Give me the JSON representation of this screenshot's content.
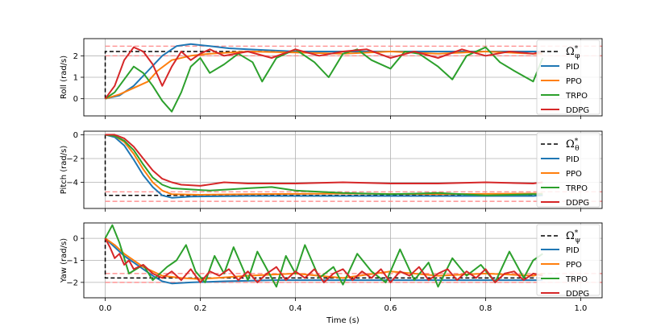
{
  "chart_data": [
    {
      "type": "line",
      "ylabel": "Roll (rad/s)",
      "xlim": [
        -0.045,
        1.045
      ],
      "ylim": [
        -0.8,
        2.8
      ],
      "yticks": [
        0,
        1,
        2
      ],
      "target": 2.2,
      "band": [
        2.0,
        2.45
      ],
      "legend_title": "Ω*ϕ",
      "series": [
        {
          "name": "PID",
          "color": "#1f77b4",
          "x": [
            0,
            0.03,
            0.06,
            0.09,
            0.12,
            0.15,
            0.18,
            0.22,
            0.26,
            0.3,
            0.4,
            0.5,
            0.6,
            0.7,
            0.8,
            0.9,
            0.92
          ],
          "y": [
            0,
            0.15,
            0.6,
            1.3,
            2.0,
            2.45,
            2.55,
            2.45,
            2.35,
            2.3,
            2.2,
            2.2,
            2.2,
            2.2,
            2.2,
            2.2,
            2.2
          ]
        },
        {
          "name": "PPO",
          "color": "#ff7f0e",
          "x": [
            0,
            0.03,
            0.06,
            0.09,
            0.11,
            0.14,
            0.18,
            0.22,
            0.3,
            0.4,
            0.5,
            0.6,
            0.7,
            0.8,
            0.9,
            0.92
          ],
          "y": [
            0,
            0.2,
            0.5,
            0.8,
            1.3,
            1.8,
            2.0,
            2.1,
            2.2,
            2.15,
            2.1,
            2.2,
            2.1,
            2.2,
            2.1,
            2.1
          ]
        },
        {
          "name": "TRPO",
          "color": "#2ca02c",
          "x": [
            0,
            0.02,
            0.04,
            0.06,
            0.08,
            0.1,
            0.12,
            0.14,
            0.16,
            0.18,
            0.2,
            0.22,
            0.25,
            0.28,
            0.31,
            0.33,
            0.36,
            0.4,
            0.44,
            0.47,
            0.5,
            0.53,
            0.56,
            0.6,
            0.63,
            0.66,
            0.7,
            0.73,
            0.76,
            0.8,
            0.83,
            0.86,
            0.9,
            0.92
          ],
          "y": [
            0,
            0.3,
            0.9,
            1.5,
            1.2,
            0.6,
            -0.1,
            -0.6,
            0.3,
            1.5,
            1.9,
            1.2,
            1.6,
            2.1,
            1.7,
            0.8,
            1.9,
            2.3,
            1.7,
            1.0,
            2.1,
            2.3,
            1.8,
            1.4,
            2.2,
            2.1,
            1.5,
            0.9,
            2.0,
            2.4,
            1.7,
            1.3,
            0.8,
            1.9
          ]
        },
        {
          "name": "DDPG",
          "color": "#d62728",
          "x": [
            0,
            0.02,
            0.04,
            0.06,
            0.08,
            0.1,
            0.12,
            0.14,
            0.16,
            0.18,
            0.2,
            0.22,
            0.25,
            0.3,
            0.35,
            0.4,
            0.45,
            0.5,
            0.55,
            0.6,
            0.65,
            0.7,
            0.75,
            0.8,
            0.85,
            0.9,
            0.92
          ],
          "y": [
            0,
            0.6,
            1.8,
            2.4,
            2.2,
            1.6,
            0.6,
            1.5,
            2.2,
            1.8,
            2.1,
            2.3,
            2.0,
            2.2,
            1.9,
            2.3,
            2.0,
            2.2,
            2.3,
            1.9,
            2.2,
            1.9,
            2.3,
            2.0,
            2.2,
            2.1,
            2.2
          ]
        }
      ]
    },
    {
      "type": "line",
      "ylabel": "Pitch (rad/s)",
      "xlim": [
        -0.045,
        1.045
      ],
      "ylim": [
        -6.2,
        0.3
      ],
      "yticks": [
        0,
        -2,
        -4
      ],
      "target": -5.1,
      "band": [
        -4.8,
        -5.6
      ],
      "legend_title": "Ω*θ",
      "series": [
        {
          "name": "PID",
          "color": "#1f77b4",
          "x": [
            0,
            0.02,
            0.04,
            0.06,
            0.08,
            0.1,
            0.12,
            0.14,
            0.18,
            0.3,
            0.5,
            0.7,
            0.9,
            0.92
          ],
          "y": [
            0,
            -0.2,
            -0.9,
            -2.1,
            -3.4,
            -4.4,
            -5.1,
            -5.3,
            -5.2,
            -5.15,
            -5.15,
            -5.15,
            -5.15,
            -5.1
          ]
        },
        {
          "name": "PPO",
          "color": "#ff7f0e",
          "x": [
            0,
            0.02,
            0.04,
            0.06,
            0.08,
            0.1,
            0.12,
            0.14,
            0.2,
            0.3,
            0.5,
            0.7,
            0.9,
            0.92
          ],
          "y": [
            0,
            -0.1,
            -0.6,
            -1.6,
            -2.9,
            -4.0,
            -4.7,
            -5.0,
            -5.05,
            -5.0,
            -4.95,
            -5.0,
            -4.95,
            -4.95
          ]
        },
        {
          "name": "TRPO",
          "color": "#2ca02c",
          "x": [
            0,
            0.02,
            0.04,
            0.06,
            0.08,
            0.1,
            0.12,
            0.14,
            0.18,
            0.22,
            0.26,
            0.3,
            0.35,
            0.4,
            0.45,
            0.5,
            0.6,
            0.7,
            0.8,
            0.9,
            0.92
          ],
          "y": [
            0,
            -0.1,
            -0.5,
            -1.3,
            -2.5,
            -3.6,
            -4.2,
            -4.5,
            -4.6,
            -4.7,
            -4.6,
            -4.5,
            -4.4,
            -4.7,
            -4.8,
            -4.9,
            -5.0,
            -4.9,
            -5.1,
            -5.0,
            -5.0
          ]
        },
        {
          "name": "DDPG",
          "color": "#d62728",
          "x": [
            0,
            0.02,
            0.04,
            0.06,
            0.08,
            0.1,
            0.12,
            0.14,
            0.16,
            0.2,
            0.25,
            0.3,
            0.4,
            0.5,
            0.6,
            0.7,
            0.8,
            0.9,
            0.92
          ],
          "y": [
            0,
            0,
            -0.3,
            -1.0,
            -2.0,
            -3.0,
            -3.7,
            -4.0,
            -4.2,
            -4.3,
            -4.0,
            -4.1,
            -4.1,
            -4.0,
            -4.1,
            -4.1,
            -4.0,
            -4.1,
            -4.0
          ]
        }
      ]
    },
    {
      "type": "line",
      "ylabel": "Yaw (rad/s)",
      "xlabel": "Time (s)",
      "xlim": [
        -0.045,
        1.045
      ],
      "xticks": [
        0.0,
        0.2,
        0.4,
        0.6,
        0.8,
        1.0
      ],
      "ylim": [
        -2.7,
        0.7
      ],
      "yticks": [
        0,
        -1,
        -2
      ],
      "target": -1.8,
      "band": [
        -1.6,
        -2.0
      ],
      "legend_title": "Ω*ψ",
      "series": [
        {
          "name": "PID",
          "color": "#1f77b4",
          "x": [
            0,
            0.02,
            0.04,
            0.06,
            0.08,
            0.1,
            0.12,
            0.14,
            0.18,
            0.25,
            0.35,
            0.5,
            0.7,
            0.9,
            0.92
          ],
          "y": [
            0,
            -0.4,
            -0.8,
            -1.1,
            -1.4,
            -1.7,
            -1.95,
            -2.05,
            -2.0,
            -1.95,
            -1.9,
            -1.9,
            -1.9,
            -1.9,
            -1.9
          ]
        },
        {
          "name": "PPO",
          "color": "#ff7f0e",
          "x": [
            0,
            0.02,
            0.04,
            0.06,
            0.08,
            0.1,
            0.12,
            0.16,
            0.2,
            0.3,
            0.4,
            0.5,
            0.6,
            0.7,
            0.8,
            0.9,
            0.92
          ],
          "y": [
            0,
            -0.3,
            -0.7,
            -1.0,
            -1.3,
            -1.5,
            -1.7,
            -1.8,
            -1.85,
            -1.7,
            -1.6,
            -1.8,
            -1.5,
            -1.7,
            -1.6,
            -1.7,
            -1.6
          ]
        },
        {
          "name": "TRPO",
          "color": "#2ca02c",
          "x": [
            0,
            0.015,
            0.03,
            0.05,
            0.08,
            0.1,
            0.13,
            0.15,
            0.17,
            0.19,
            0.21,
            0.23,
            0.25,
            0.27,
            0.3,
            0.32,
            0.34,
            0.36,
            0.38,
            0.4,
            0.42,
            0.45,
            0.48,
            0.5,
            0.53,
            0.56,
            0.59,
            0.62,
            0.65,
            0.68,
            0.7,
            0.73,
            0.76,
            0.79,
            0.82,
            0.85,
            0.88,
            0.9,
            0.92
          ],
          "y": [
            0,
            0.6,
            -0.2,
            -1.6,
            -1.2,
            -1.9,
            -1.3,
            -1.0,
            -0.3,
            -1.5,
            -2.0,
            -0.8,
            -1.6,
            -0.4,
            -1.9,
            -0.6,
            -1.4,
            -2.2,
            -0.8,
            -1.6,
            -0.3,
            -1.8,
            -1.3,
            -2.1,
            -0.7,
            -1.5,
            -2.0,
            -0.5,
            -1.9,
            -1.1,
            -2.2,
            -0.9,
            -1.7,
            -1.2,
            -2.0,
            -0.6,
            -1.8,
            -1.0,
            -0.7
          ]
        },
        {
          "name": "DDPG",
          "color": "#d62728",
          "x": [
            0,
            0.01,
            0.02,
            0.03,
            0.04,
            0.05,
            0.06,
            0.08,
            0.1,
            0.12,
            0.14,
            0.16,
            0.18,
            0.2,
            0.22,
            0.24,
            0.26,
            0.28,
            0.3,
            0.32,
            0.34,
            0.36,
            0.38,
            0.4,
            0.42,
            0.44,
            0.46,
            0.48,
            0.5,
            0.52,
            0.54,
            0.56,
            0.58,
            0.6,
            0.62,
            0.64,
            0.66,
            0.68,
            0.7,
            0.72,
            0.74,
            0.76,
            0.78,
            0.8,
            0.82,
            0.84,
            0.86,
            0.88,
            0.9,
            0.92
          ],
          "y": [
            0,
            -0.4,
            -0.9,
            -0.7,
            -1.2,
            -1.0,
            -1.4,
            -1.2,
            -1.6,
            -1.8,
            -1.5,
            -1.9,
            -1.4,
            -2.0,
            -1.5,
            -1.7,
            -1.4,
            -1.9,
            -1.5,
            -2.0,
            -1.6,
            -1.3,
            -1.9,
            -1.5,
            -1.8,
            -1.4,
            -2.0,
            -1.6,
            -1.4,
            -1.9,
            -1.5,
            -1.8,
            -1.4,
            -2.0,
            -1.5,
            -1.7,
            -1.3,
            -1.9,
            -1.6,
            -1.4,
            -1.9,
            -1.5,
            -1.8,
            -1.4,
            -2.0,
            -1.6,
            -1.5,
            -1.9,
            -1.6,
            -1.7
          ]
        }
      ]
    }
  ]
}
